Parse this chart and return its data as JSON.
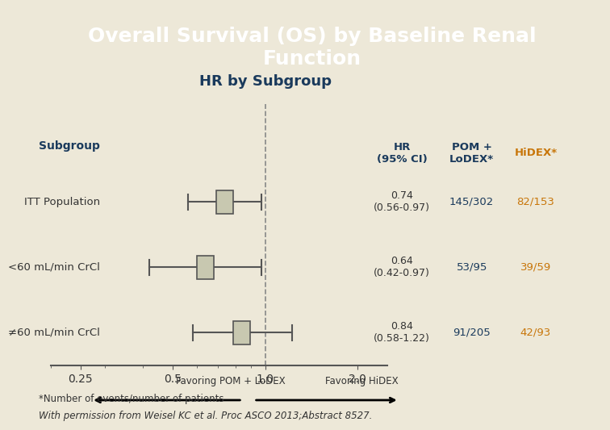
{
  "title": "Overall Survival (OS) by Baseline Renal\nFunction",
  "subtitle": "HR by Subgroup",
  "title_bg": "#1a3a5c",
  "title_fg": "#ffffff",
  "body_bg": "#ede8d8",
  "subgroups": [
    "ITT Population",
    "<60 mL/min CrCl",
    "≠60 mL/min CrCl"
  ],
  "hr": [
    0.74,
    0.64,
    0.84
  ],
  "ci_low": [
    0.56,
    0.42,
    0.58
  ],
  "ci_high": [
    0.97,
    0.97,
    1.22
  ],
  "hr_text": [
    "0.74\n(0.56-0.97)",
    "0.64\n(0.42-0.97)",
    "0.84\n(0.58-1.22)"
  ],
  "pom_lodex": [
    "145/302",
    "53/95",
    "91/205"
  ],
  "hidex": [
    "82/153",
    "39/59",
    "42/93"
  ],
  "col_hr_label": "HR\n(95% CI)",
  "col_pom_label": "POM +\nLoDEX*",
  "col_hidex_label": "HiDEX*",
  "col_subgroup_label": "Subgroup",
  "axis_ticks": [
    0.25,
    0.5,
    1.0,
    2.0
  ],
  "axis_label_left": "Favoring POM + LoDEX",
  "axis_label_right": "Favoring HiDEX",
  "footnote1": "*Number of events/number of patients",
  "footnote2": "With permission from Weisel KC et al. Proc ASCO 2013;Abstract 8527.",
  "dark_blue": "#1a3a5c",
  "orange": "#c8760a",
  "box_color": "#c8c8b0",
  "line_color": "#555555",
  "dashed_line_color": "#888888"
}
